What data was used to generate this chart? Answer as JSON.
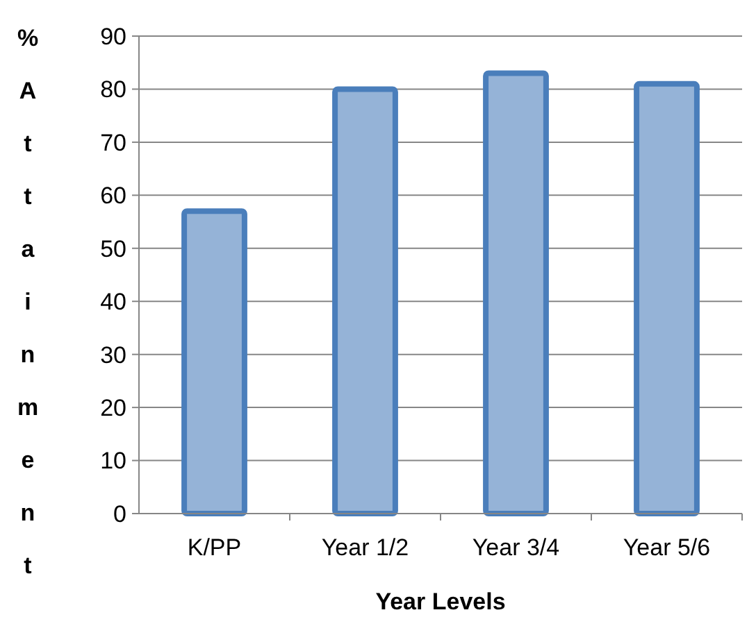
{
  "chart_data": {
    "type": "bar",
    "xlabel": "Year Levels",
    "ylabel": "% Attainment",
    "categories": [
      "K/PP",
      "Year 1/2",
      "Year 3/4",
      "Year 5/6"
    ],
    "values": [
      57,
      80,
      83,
      81
    ],
    "color": "#95b3d7",
    "ylim": [
      0,
      90
    ],
    "yticks": [
      0,
      10,
      20,
      30,
      40,
      50,
      60,
      70,
      80,
      90
    ],
    "grid": "y"
  }
}
